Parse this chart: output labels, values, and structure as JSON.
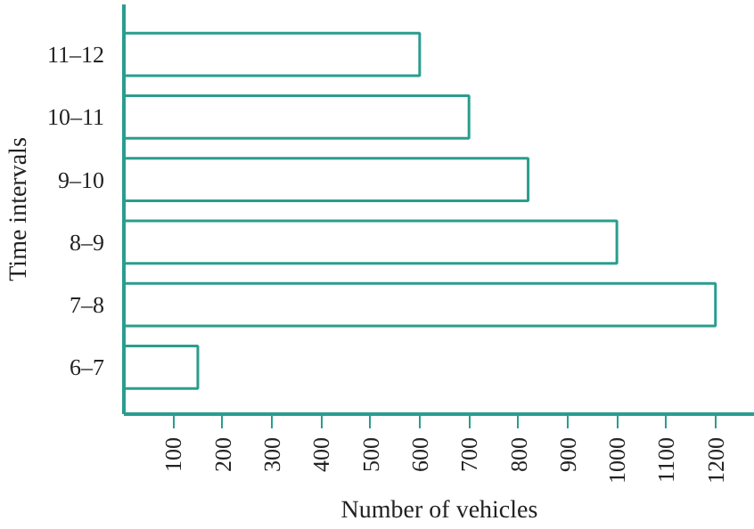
{
  "chart_data": {
    "type": "bar",
    "orientation": "horizontal",
    "xlabel": "Number of vehicles",
    "ylabel": "Time intervals",
    "categories": [
      "11–12",
      "10–11",
      "9–10",
      "8–9",
      "7–8",
      "6–7"
    ],
    "values": [
      600,
      700,
      820,
      1000,
      1200,
      150
    ],
    "color": "#2a9d8f",
    "xlim": [
      0,
      1280
    ],
    "xticks": [
      100,
      200,
      300,
      400,
      500,
      600,
      700,
      800,
      900,
      1000,
      1100,
      1200
    ],
    "grid": false
  }
}
